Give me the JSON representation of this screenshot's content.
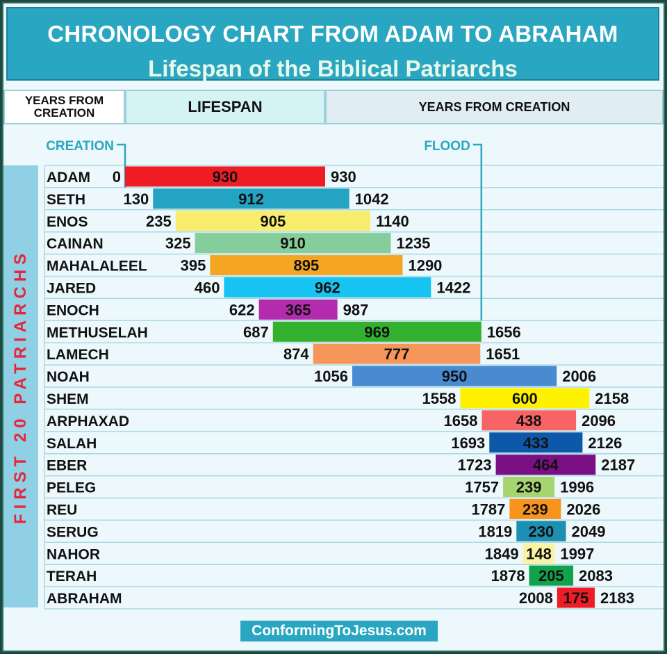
{
  "header": {
    "title": "CHRONOLOGY CHART FROM ADAM TO ABRAHAM",
    "subtitle": "Lifespan of the Biblical Patriarchs"
  },
  "columns": {
    "years_from_creation_left": "YEARS FROM CREATION",
    "lifespan": "LIFESPAN",
    "years_from_creation_right": "YEARS FROM CREATION"
  },
  "side_label": "FIRST 20 PATRIARCHS",
  "footer": "ConformingToJesus.com",
  "colors": {
    "header_bg": "#29a6c2",
    "side_bg": "#8fd0e4",
    "side_text": "#e8253a",
    "marker": "#29a6c2"
  },
  "chart_data": {
    "type": "bar",
    "title": "CHRONOLOGY CHART FROM ADAM TO ABRAHAM",
    "subtitle": "Lifespan of the Biblical Patriarchs",
    "orientation": "horizontal-floating",
    "markers": [
      {
        "label": "CREATION",
        "year": 0
      },
      {
        "label": "FLOOD",
        "year": 1656
      }
    ],
    "series": [
      {
        "name": "ADAM",
        "start": 0,
        "lifespan": 930,
        "end": 930,
        "color": "#ef1c24"
      },
      {
        "name": "SETH",
        "start": 130,
        "lifespan": 912,
        "end": 1042,
        "color": "#23a4c2"
      },
      {
        "name": "ENOS",
        "start": 235,
        "lifespan": 905,
        "end": 1140,
        "color": "#f8ec6c"
      },
      {
        "name": "CAINAN",
        "start": 325,
        "lifespan": 910,
        "end": 1235,
        "color": "#86cd9c"
      },
      {
        "name": "MAHALALEEL",
        "start": 395,
        "lifespan": 895,
        "end": 1290,
        "color": "#f4a623"
      },
      {
        "name": "JARED",
        "start": 460,
        "lifespan": 962,
        "end": 1422,
        "color": "#17c3f1"
      },
      {
        "name": "ENOCH",
        "start": 622,
        "lifespan": 365,
        "end": 987,
        "color": "#b32cb0"
      },
      {
        "name": "METHUSELAH",
        "start": 687,
        "lifespan": 969,
        "end": 1656,
        "color": "#33b12e"
      },
      {
        "name": "LAMECH",
        "start": 874,
        "lifespan": 777,
        "end": 1651,
        "color": "#f7965a"
      },
      {
        "name": "NOAH",
        "start": 1056,
        "lifespan": 950,
        "end": 2006,
        "color": "#4a8ad0"
      },
      {
        "name": "SHEM",
        "start": 1558,
        "lifespan": 600,
        "end": 2158,
        "color": "#fef200"
      },
      {
        "name": "ARPHAXAD",
        "start": 1658,
        "lifespan": 438,
        "end": 2096,
        "color": "#f76466"
      },
      {
        "name": "SALAH",
        "start": 1693,
        "lifespan": 433,
        "end": 2126,
        "color": "#0d58a8"
      },
      {
        "name": "EBER",
        "start": 1723,
        "lifespan": 464,
        "end": 2187,
        "color": "#7b1084"
      },
      {
        "name": "PELEG",
        "start": 1757,
        "lifespan": 239,
        "end": 1996,
        "color": "#a6d46e"
      },
      {
        "name": "REU",
        "start": 1787,
        "lifespan": 239,
        "end": 2026,
        "color": "#f8931d"
      },
      {
        "name": "SERUG",
        "start": 1819,
        "lifespan": 230,
        "end": 2049,
        "color": "#1d8fb3"
      },
      {
        "name": "NAHOR",
        "start": 1849,
        "lifespan": 148,
        "end": 1997,
        "color": "#fbf3a1"
      },
      {
        "name": "TERAH",
        "start": 1878,
        "lifespan": 205,
        "end": 2083,
        "color": "#12a24b"
      },
      {
        "name": "ABRAHAM",
        "start": 2008,
        "lifespan": 175,
        "end": 2183,
        "color": "#ee1c25"
      }
    ]
  }
}
